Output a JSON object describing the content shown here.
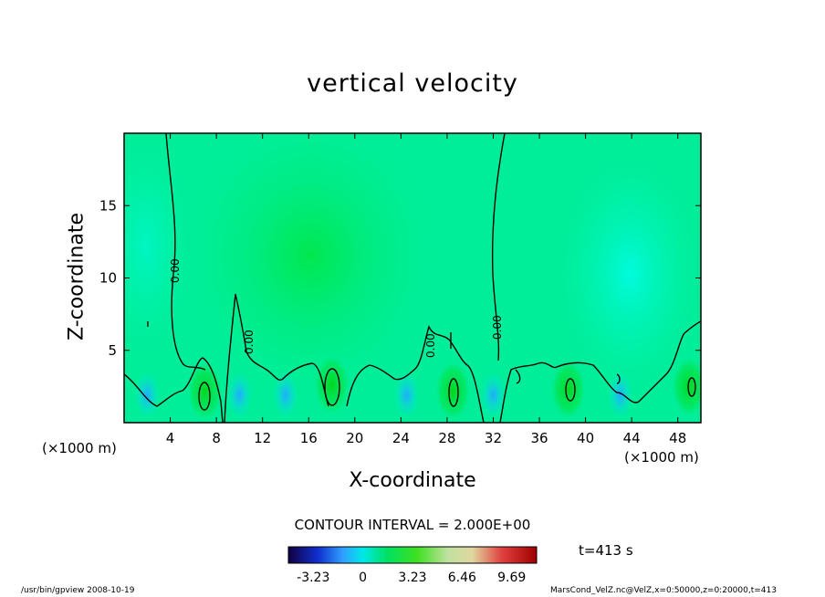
{
  "chart_data": {
    "type": "heatmap",
    "title": "vertical velocity",
    "xlabel": "X-coordinate",
    "ylabel": "Z-coordinate",
    "x_unit_note": "(×1000 m)",
    "xlim": [
      0,
      50
    ],
    "ylim": [
      0,
      20
    ],
    "x_ticks": [
      4,
      8,
      12,
      16,
      20,
      24,
      28,
      32,
      36,
      40,
      44,
      48
    ],
    "y_ticks": [
      5,
      10,
      15
    ],
    "contour_label": "0.00",
    "contour_interval_text": "CONTOUR INTERVAL = 2.000E+00",
    "colorbar": {
      "ticks": [
        "-3.23",
        "0",
        "3.23",
        "6.46",
        "9.69"
      ],
      "range": [
        -4.85,
        11.31
      ]
    },
    "time_text": "t=413 s",
    "updrafts": [
      {
        "x": 7,
        "z": 2.2,
        "value": 4
      },
      {
        "x": 18,
        "z": 2.6,
        "value": 5
      },
      {
        "x": 28.5,
        "z": 2.2,
        "value": 4
      },
      {
        "x": 38.5,
        "z": 2.3,
        "value": 4
      },
      {
        "x": 49,
        "z": 2.5,
        "value": 4
      }
    ],
    "grid": false
  },
  "footer": {
    "left": "/usr/bin/gpview   2008-10-19",
    "right": "MarsCond_VelZ.nc@VelZ,x=0:50000,z=0:20000,t=413"
  },
  "colors": {
    "field_background": "#00ee99",
    "updraft": "#00dd22",
    "downdraft": "#33bbff"
  }
}
